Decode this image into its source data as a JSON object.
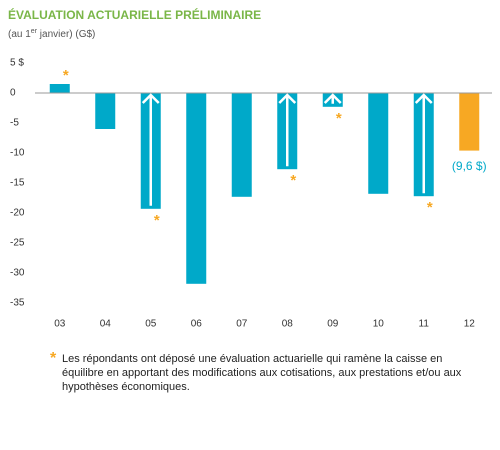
{
  "chart_data": {
    "type": "bar",
    "title": "ÉVALUATION ACTUARIELLE PRÉLIMINAIRE",
    "subtitle": [
      "(au 1",
      "er",
      " janvier) (G$)"
    ],
    "categories": [
      "03",
      "04",
      "05",
      "06",
      "07",
      "08",
      "09",
      "10",
      "11",
      "12"
    ],
    "values": [
      1.5,
      -6,
      -19.3,
      -31.8,
      -17.3,
      -12.7,
      -2.3,
      -16.8,
      -17.2,
      -9.6
    ],
    "value_labels": [
      null,
      null,
      null,
      null,
      null,
      null,
      null,
      null,
      null,
      "(9,6 $)"
    ],
    "colors": [
      "#00a9c9",
      "#00a9c9",
      "#00a9c9",
      "#00a9c9",
      "#00a9c9",
      "#00a9c9",
      "#00a9c9",
      "#00a9c9",
      "#00a9c9",
      "#f7a823"
    ],
    "flagged": [
      true,
      false,
      true,
      false,
      false,
      true,
      true,
      false,
      true,
      false
    ],
    "ylim": [
      -36,
      6
    ],
    "yticks": [
      {
        "value": 5,
        "label": "5 $"
      },
      0,
      -5,
      -10,
      -15,
      -20,
      -25,
      -30,
      -35
    ],
    "grid": false,
    "footnote": {
      "symbol": "*",
      "text": "Les répondants ont déposé une évaluation actuarielle qui ramène la caisse en équilibre en apportant des modifications aux cotisations, aux prestations et/ou aux hypothèses économiques."
    }
  }
}
